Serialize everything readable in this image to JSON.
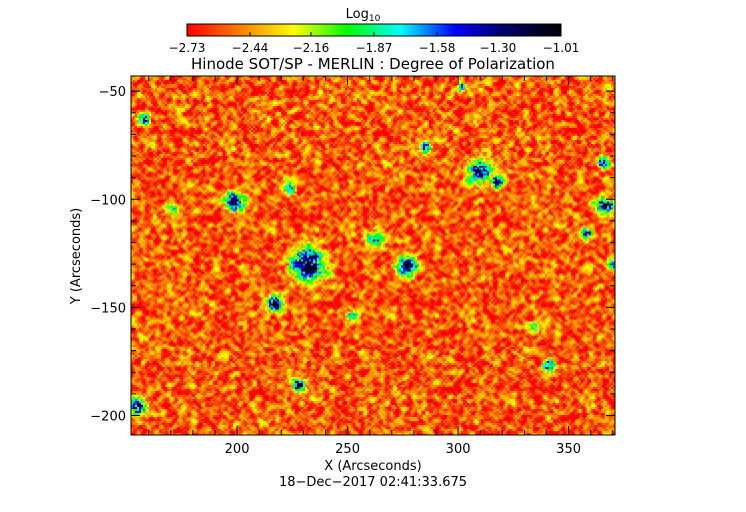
{
  "chart_data": {
    "type": "heatmap",
    "title": "Hinode SOT/SP - MERLIN : Degree of Polarization",
    "xlabel": "X (Arcseconds)",
    "ylabel": "Y (Arcseconds)",
    "xlim": [
      152,
      371
    ],
    "ylim": [
      -209,
      -43
    ],
    "x_ticks": [
      200,
      250,
      300,
      350
    ],
    "y_ticks": [
      -50,
      -100,
      -150,
      -200
    ],
    "x_tick_labels": [
      "200",
      "250",
      "300",
      "350"
    ],
    "y_tick_labels": [
      "−50",
      "−100",
      "−150",
      "−200"
    ],
    "timestamp": "18−Dec−2017 02:41:33.675",
    "colorbar": {
      "label_base": "Log",
      "label_sub": "10",
      "ticks": [
        -2.73,
        -2.44,
        -2.16,
        -1.87,
        -1.58,
        -1.3,
        -1.01
      ],
      "tick_labels": [
        "−2.73",
        "−2.44",
        "−2.16",
        "−1.87",
        "−1.58",
        "−1.30",
        "−1.01"
      ],
      "colormap": [
        "#ff0000",
        "#ff8000",
        "#ffff00",
        "#00ff00",
        "#00ffff",
        "#0000ff",
        "#000060",
        "#000000"
      ]
    },
    "background_level": -2.55,
    "concentrations": [
      {
        "x": 232,
        "y": -130,
        "peak": -1.05,
        "radius": 8
      },
      {
        "x": 217,
        "y": -148,
        "peak": -1.15,
        "radius": 4
      },
      {
        "x": 199,
        "y": -101,
        "peak": -1.2,
        "radius": 5
      },
      {
        "x": 277,
        "y": -131,
        "peak": -1.3,
        "radius": 5
      },
      {
        "x": 263,
        "y": -118,
        "peak": -1.5,
        "radius": 4
      },
      {
        "x": 310,
        "y": -87,
        "peak": -1.35,
        "radius": 6
      },
      {
        "x": 318,
        "y": -92,
        "peak": -1.25,
        "radius": 3
      },
      {
        "x": 366,
        "y": -103,
        "peak": -1.2,
        "radius": 4
      },
      {
        "x": 366,
        "y": -83,
        "peak": -1.45,
        "radius": 3
      },
      {
        "x": 368,
        "y": -103,
        "peak": -1.3,
        "radius": 3
      },
      {
        "x": 358,
        "y": -116,
        "peak": -1.3,
        "radius": 3
      },
      {
        "x": 341,
        "y": -177,
        "peak": -1.45,
        "radius": 3
      },
      {
        "x": 155,
        "y": -196,
        "peak": -1.2,
        "radius": 4
      },
      {
        "x": 158,
        "y": -63,
        "peak": -1.45,
        "radius": 3
      },
      {
        "x": 228,
        "y": -186,
        "peak": -1.3,
        "radius": 3
      },
      {
        "x": 285,
        "y": -76,
        "peak": -1.55,
        "radius": 3
      },
      {
        "x": 302,
        "y": -48,
        "peak": -1.45,
        "radius": 2
      },
      {
        "x": 224,
        "y": -95,
        "peak": -1.6,
        "radius": 3
      },
      {
        "x": 171,
        "y": -105,
        "peak": -1.7,
        "radius": 3
      },
      {
        "x": 252,
        "y": -154,
        "peak": -1.8,
        "radius": 3
      },
      {
        "x": 335,
        "y": -159,
        "peak": -1.8,
        "radius": 3
      },
      {
        "x": 370,
        "y": -130,
        "peak": -1.6,
        "radius": 3
      }
    ]
  }
}
